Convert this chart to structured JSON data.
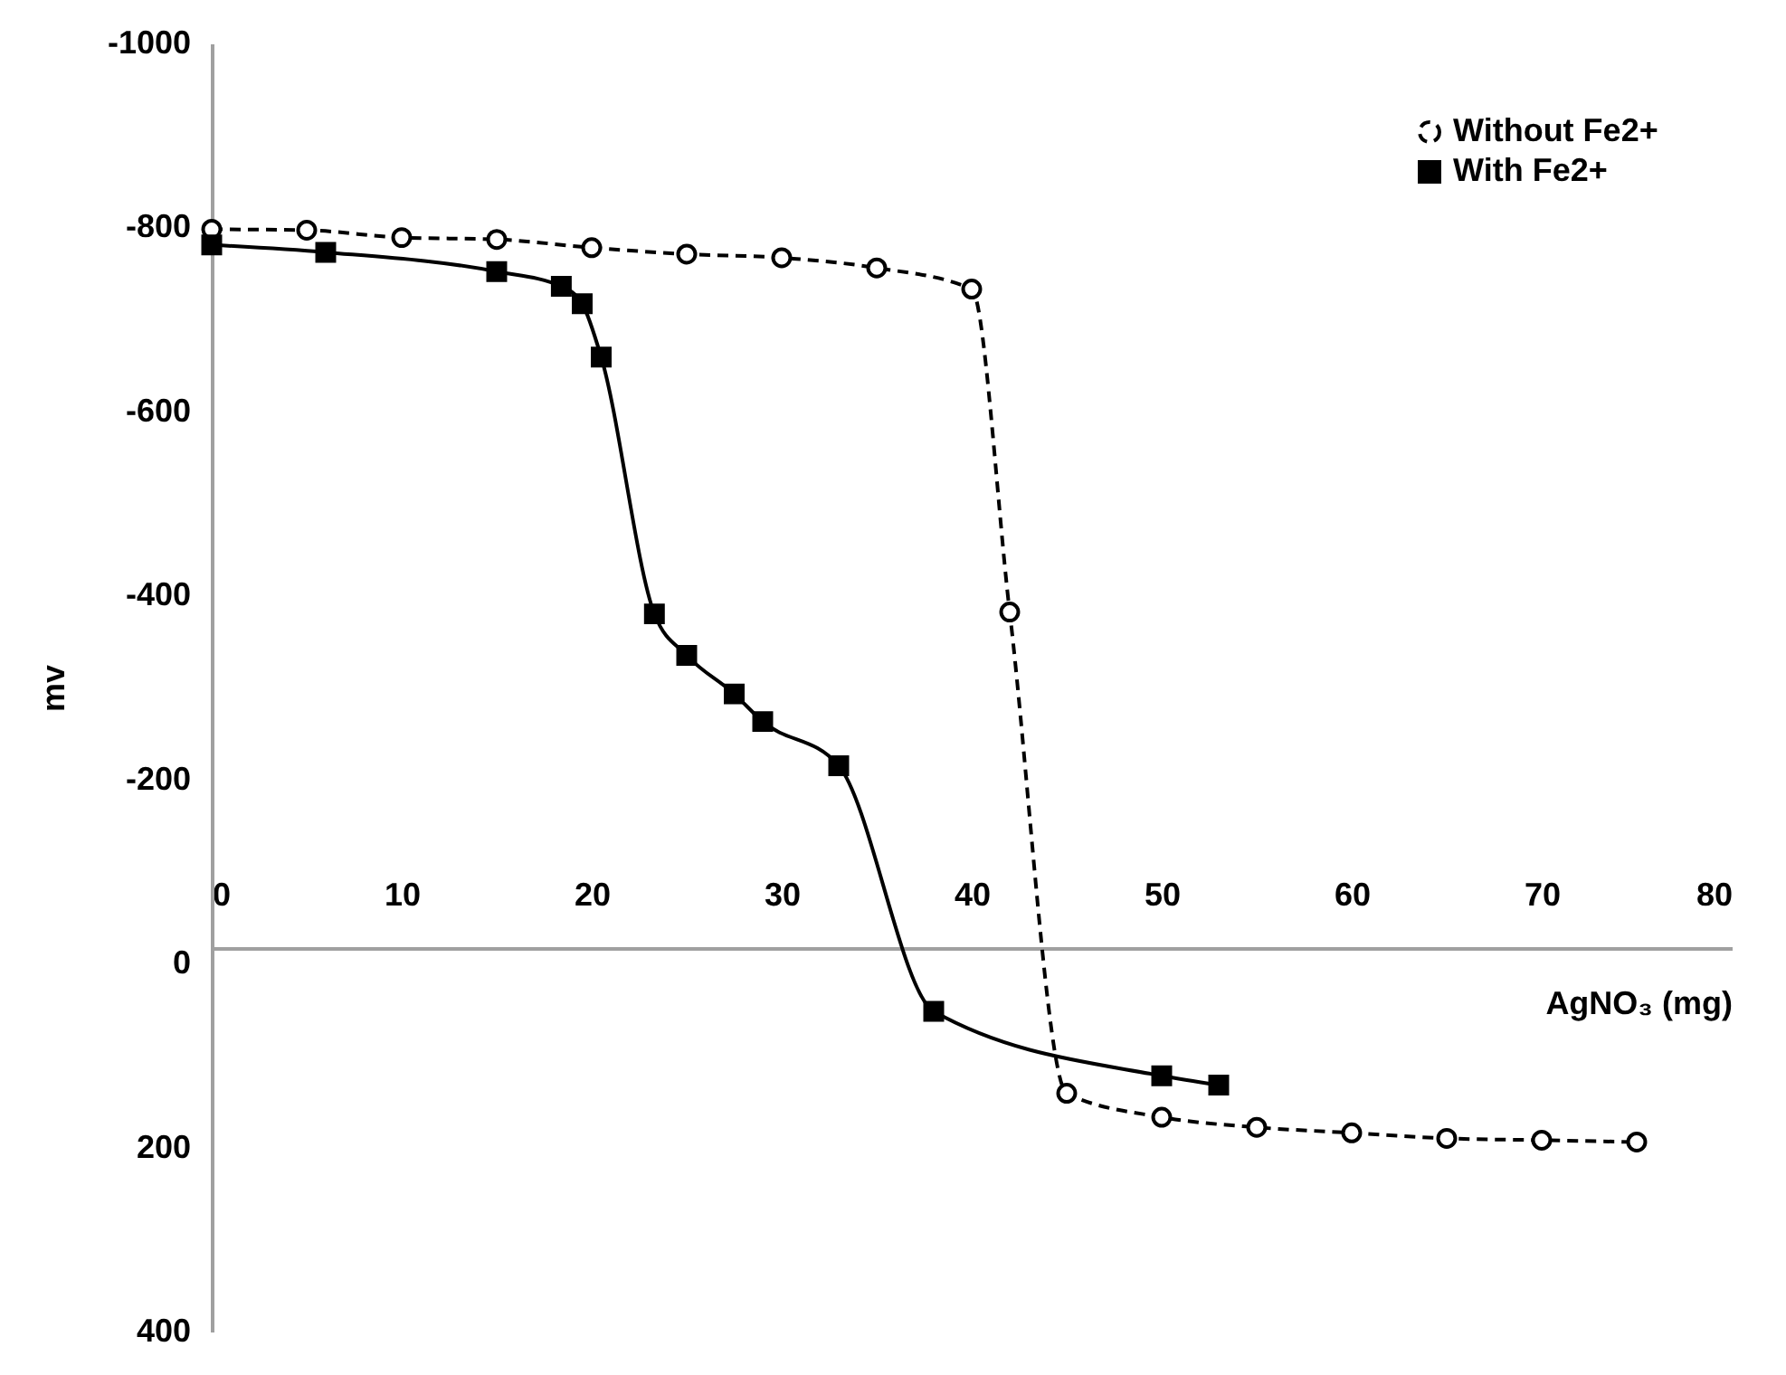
{
  "chart_data": {
    "type": "line",
    "xlabel": "AgNO₃ (mg)",
    "ylabel": "mv",
    "xlim": [
      0,
      80
    ],
    "xticks": [
      0,
      10,
      20,
      30,
      40,
      50,
      60,
      70,
      80
    ],
    "ylim": [
      400,
      -1000
    ],
    "yticks": [
      -1000,
      -800,
      -600,
      -400,
      -200,
      0,
      200,
      400
    ],
    "grid": false,
    "legend": "top right",
    "series": [
      {
        "name": "Without Fe2+",
        "color": "#000000",
        "marker": "circle",
        "line_style": "dashed",
        "x": [
          0,
          5,
          10,
          15,
          20,
          25,
          30,
          35,
          40,
          42,
          45,
          50,
          55,
          60,
          65,
          70,
          75
        ],
        "values": [
          -798,
          -797,
          -789,
          -787,
          -778,
          -771,
          -767,
          -756,
          -733,
          -382,
          141,
          167,
          178,
          184,
          190,
          192,
          194
        ]
      },
      {
        "name": "With Fe2+",
        "color": "#000000",
        "marker": "square",
        "line_style": "solid",
        "x": [
          0,
          6,
          15,
          18.4,
          19.5,
          20.5,
          23.3,
          25,
          27.5,
          29,
          33,
          38,
          50,
          53
        ],
        "values": [
          -781,
          -773,
          -752,
          -736,
          -717,
          -659,
          -380,
          -335,
          -293,
          -263,
          -215,
          52,
          122,
          132
        ]
      }
    ]
  }
}
